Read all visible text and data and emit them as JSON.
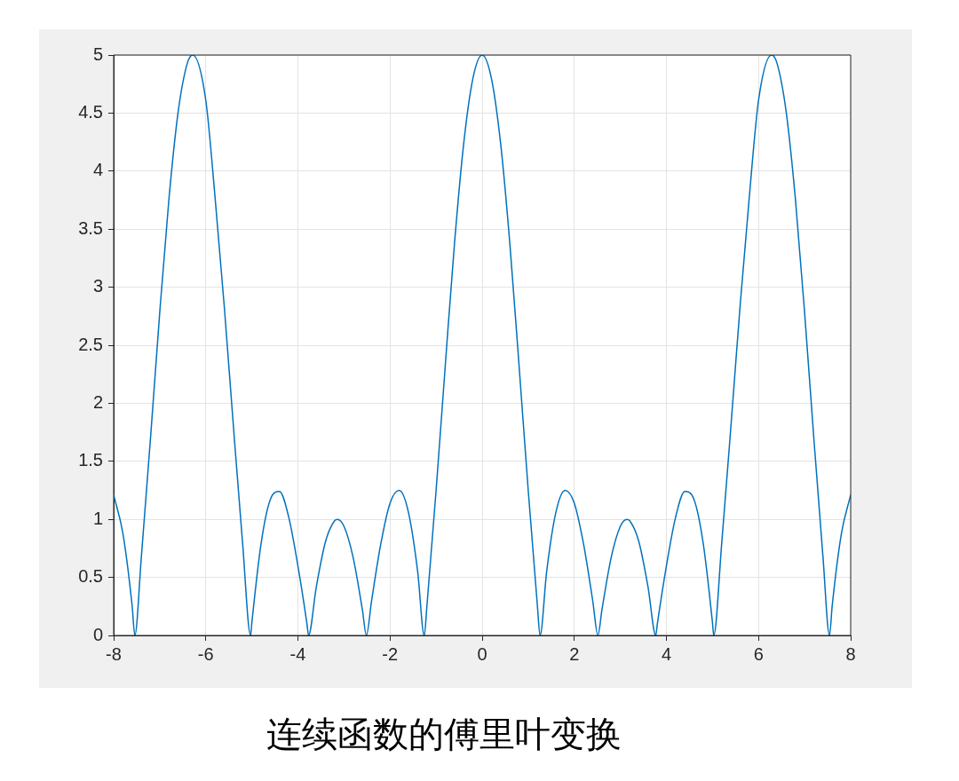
{
  "chart_data": {
    "type": "line",
    "x": [
      -8,
      -7.8,
      -7.6,
      -7.54,
      -7.4,
      -7.2,
      -7,
      -6.8,
      -6.6,
      -6.4,
      -6.283,
      -6,
      -5.8,
      -5.6,
      -5.4,
      -5.2,
      -5.027,
      -5,
      -4.8,
      -4.6,
      -4.4,
      -4.2,
      -4,
      -3.8,
      -3.77,
      -3.6,
      -3.4,
      -3.2,
      -3.142,
      -3,
      -2.8,
      -2.6,
      -2.513,
      -2.4,
      -2.2,
      -2,
      -1.8,
      -1.6,
      -1.4,
      -1.257,
      -1.2,
      -1,
      -0.8,
      -0.6,
      -0.4,
      -0.2,
      0,
      0.2,
      0.4,
      0.6,
      0.8,
      1,
      1.2,
      1.257,
      1.4,
      1.6,
      1.8,
      2,
      2.2,
      2.4,
      2.513,
      2.6,
      2.8,
      3,
      3.142,
      3.2,
      3.4,
      3.6,
      3.77,
      3.8,
      4,
      4.2,
      4.4,
      4.6,
      4.8,
      5,
      5.027,
      5.2,
      5.4,
      5.6,
      5.8,
      6,
      6.283,
      6.4,
      6.6,
      6.8,
      7,
      7.2,
      7.4,
      7.54,
      7.6,
      7.8,
      8
    ],
    "series": [
      {
        "color": "#0072bd",
        "values": [
          1.21,
          0.88,
          0.26,
          0,
          0.67,
          1.7,
          2.78,
          3.76,
          4.51,
          4.93,
          5,
          4.61,
          3.78,
          2.84,
          1.8,
          0.79,
          0,
          0.11,
          0.79,
          1.17,
          1.24,
          1.02,
          0.6,
          0.09,
          0,
          0.42,
          0.81,
          0.99,
          1,
          0.94,
          0.67,
          0.22,
          0,
          0.3,
          0.79,
          1.14,
          1.25,
          1.06,
          0.55,
          0,
          0.25,
          1.25,
          2.33,
          3.38,
          4.24,
          4.8,
          5,
          4.8,
          4.24,
          3.38,
          2.33,
          1.25,
          0.25,
          0,
          0.55,
          1.06,
          1.25,
          1.14,
          0.79,
          0.3,
          0,
          0.22,
          0.67,
          0.94,
          1,
          0.99,
          0.81,
          0.42,
          0,
          0.09,
          0.6,
          1.02,
          1.24,
          1.17,
          0.79,
          0.11,
          0,
          0.79,
          1.8,
          2.84,
          3.78,
          4.61,
          5,
          4.93,
          4.51,
          3.76,
          2.78,
          1.7,
          0.67,
          0,
          0.26,
          0.88,
          1.21
        ]
      }
    ],
    "xlim": [
      -8,
      8
    ],
    "ylim": [
      0,
      5
    ],
    "xticks": [
      -8,
      -6,
      -4,
      -2,
      0,
      2,
      4,
      6,
      8
    ],
    "yticks": [
      0,
      0.5,
      1,
      1.5,
      2,
      2.5,
      3,
      3.5,
      4,
      4.5,
      5
    ],
    "grid": true,
    "marker": "none",
    "line_style": "solid",
    "annotations": [
      "连续函数的傅里叶变换"
    ]
  }
}
